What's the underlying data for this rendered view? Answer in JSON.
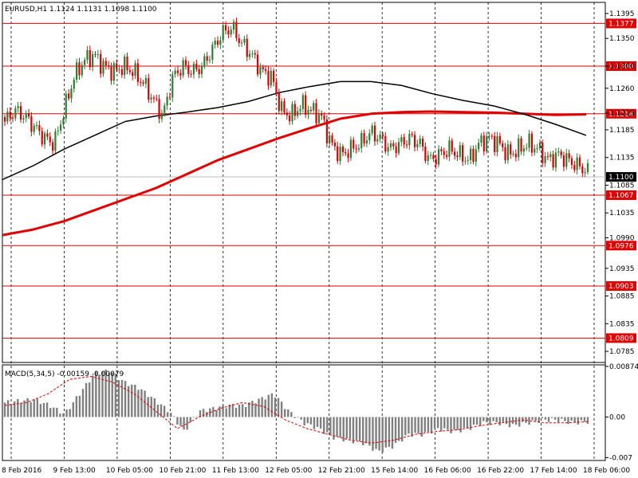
{
  "chart_data": {
    "type": "candlestick",
    "title": "EURUSD,H1  1.1124 1.1131 1.1098 1.1100",
    "symbol": "EURUSD",
    "timeframe": "H1",
    "ohlc_header": [
      "1.1124",
      "1.1131",
      "1.1098",
      "1.1100"
    ],
    "colors": {
      "bull": "#2e7d32",
      "bear": "#d50000",
      "ma_fast": "#000000",
      "ma_slow": "#e00000",
      "level": "#e00000",
      "macd_hist": "#808080",
      "macd_signal": "#e00000",
      "last_price_bg": "#000000"
    },
    "price_axis": {
      "min": 1.0765,
      "max": 1.1415,
      "ticks": [
        "1.1395",
        "1.1350",
        "1.1300",
        "1.1260",
        "1.1215",
        "1.1185",
        "1.1135",
        "1.1085",
        "1.1035",
        "1.0990",
        "1.0935",
        "1.0885",
        "1.0835",
        "1.0785"
      ]
    },
    "last_price": "1.1100",
    "levels": [
      "1.1377",
      "1.1300",
      "1.1214",
      "1.1067",
      "1.0976",
      "1.0903",
      "1.0809"
    ],
    "x_labels": [
      "8 Feb 2016",
      "9 Feb 13:00",
      "10 Feb 05:00",
      "10 Feb 21:00",
      "11 Feb 13:00",
      "12 Feb 05:00",
      "12 Feb 21:00",
      "15 Feb 14:00",
      "16 Feb 06:00",
      "16 Feb 22:00",
      "17 Feb 14:00",
      "18 Feb 06:00"
    ],
    "ohlc_path": [
      1.12,
      1.122,
      1.121,
      1.119,
      1.117,
      1.116,
      1.122,
      1.128,
      1.131,
      1.132,
      1.13,
      1.129,
      1.13,
      1.129,
      1.127,
      1.124,
      1.121,
      1.128,
      1.13,
      1.129,
      1.13,
      1.133,
      1.136,
      1.137,
      1.134,
      1.132,
      1.129,
      1.128,
      1.122,
      1.121,
      1.123,
      1.122,
      1.121,
      1.116,
      1.114,
      1.115,
      1.116,
      1.118,
      1.117,
      1.115,
      1.116,
      1.117,
      1.116,
      1.113,
      1.114,
      1.115,
      1.114,
      1.113,
      1.116,
      1.117,
      1.116,
      1.114,
      1.115,
      1.116,
      1.115,
      1.113,
      1.114,
      1.113,
      1.112,
      1.111
    ],
    "ma_fast": [
      1.1095,
      1.112,
      1.115,
      1.1175,
      1.12,
      1.121,
      1.1217,
      1.1225,
      1.1236,
      1.1252,
      1.1263,
      1.1272,
      1.1272,
      1.1265,
      1.125,
      1.1238,
      1.1228,
      1.1213,
      1.1195,
      1.1175
    ],
    "ma_slow": [
      1.0995,
      1.1005,
      1.102,
      1.104,
      1.106,
      1.108,
      1.1105,
      1.113,
      1.115,
      1.117,
      1.1188,
      1.1205,
      1.1214,
      1.1217,
      1.1218,
      1.1217,
      1.1216,
      1.1214,
      1.1212,
      1.1213
    ],
    "macd": {
      "label": "MACD(5,34,5) -0.00159 -0.00079",
      "min": -0.0075,
      "max": 0.009,
      "ticks": [
        "0.00874",
        "0.00",
        "-0.007"
      ],
      "histogram": [
        0.0025,
        0.0028,
        0.003,
        0.002,
        0.0005,
        0.004,
        0.0075,
        0.008,
        0.006,
        0.005,
        0.003,
        0.001,
        -0.0025,
        0.001,
        0.0015,
        0.002,
        0.002,
        0.003,
        0.004,
        0.001,
        -0.001,
        -0.002,
        -0.0035,
        -0.004,
        -0.0045,
        -0.006,
        -0.005,
        -0.003,
        -0.003,
        -0.002,
        -0.0025,
        -0.002,
        -0.001,
        -0.001,
        -0.0015,
        -0.001,
        -0.0005,
        -0.0005,
        -0.001,
        -0.0008
      ],
      "signal": [
        0.002,
        0.0025,
        0.004,
        0.0065,
        0.007,
        0.006,
        0.004,
        0.001,
        -0.002,
        0.0,
        0.0015,
        0.0025,
        0.0018,
        -0.0005,
        -0.002,
        -0.003,
        -0.004,
        -0.0045,
        -0.004,
        -0.003,
        -0.0025,
        -0.0022,
        -0.0015,
        -0.001,
        -0.0005,
        -0.001,
        -0.001,
        -0.0008
      ]
    }
  }
}
